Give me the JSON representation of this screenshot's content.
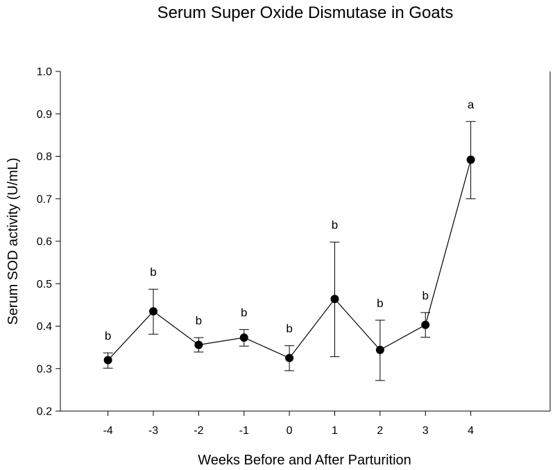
{
  "chart_data": {
    "type": "line",
    "title": "Serum Super Oxide Dismutase in Goats",
    "xlabel": "Weeks Before and After Parturition",
    "ylabel": "Serum SOD activity (U/mL)",
    "xlim": [
      -5.05,
      5.75
    ],
    "ylim": [
      0.2,
      1.0
    ],
    "x_ticks": [
      -4,
      -3,
      -2,
      -1,
      0,
      1,
      2,
      3,
      4
    ],
    "x_tick_labels": [
      "-4",
      "-3",
      "-2",
      "-1",
      "0",
      "1",
      "2",
      "3",
      "4"
    ],
    "y_ticks": [
      0.2,
      0.3,
      0.4,
      0.5,
      0.6,
      0.7,
      0.8,
      0.9,
      1.0
    ],
    "y_tick_labels": [
      "0.2",
      "0.3",
      "0.4",
      "0.5",
      "0.6",
      "0.7",
      "0.8",
      "0.9",
      "1.0"
    ],
    "grid": false,
    "series": [
      {
        "x": [
          -4,
          -3,
          -2,
          -1,
          0,
          1,
          2,
          3,
          4
        ],
        "values": [
          0.32,
          0.435,
          0.356,
          0.373,
          0.325,
          0.464,
          0.344,
          0.403,
          0.792
        ],
        "error_low": [
          0.301,
          0.381,
          0.339,
          0.353,
          0.295,
          0.328,
          0.272,
          0.374,
          0.7
        ],
        "error_high": [
          0.337,
          0.487,
          0.373,
          0.392,
          0.354,
          0.598,
          0.414,
          0.432,
          0.882
        ],
        "annotations": [
          "b",
          "b",
          "b",
          "b",
          "b",
          "b",
          "b",
          "b",
          "a"
        ]
      }
    ]
  }
}
